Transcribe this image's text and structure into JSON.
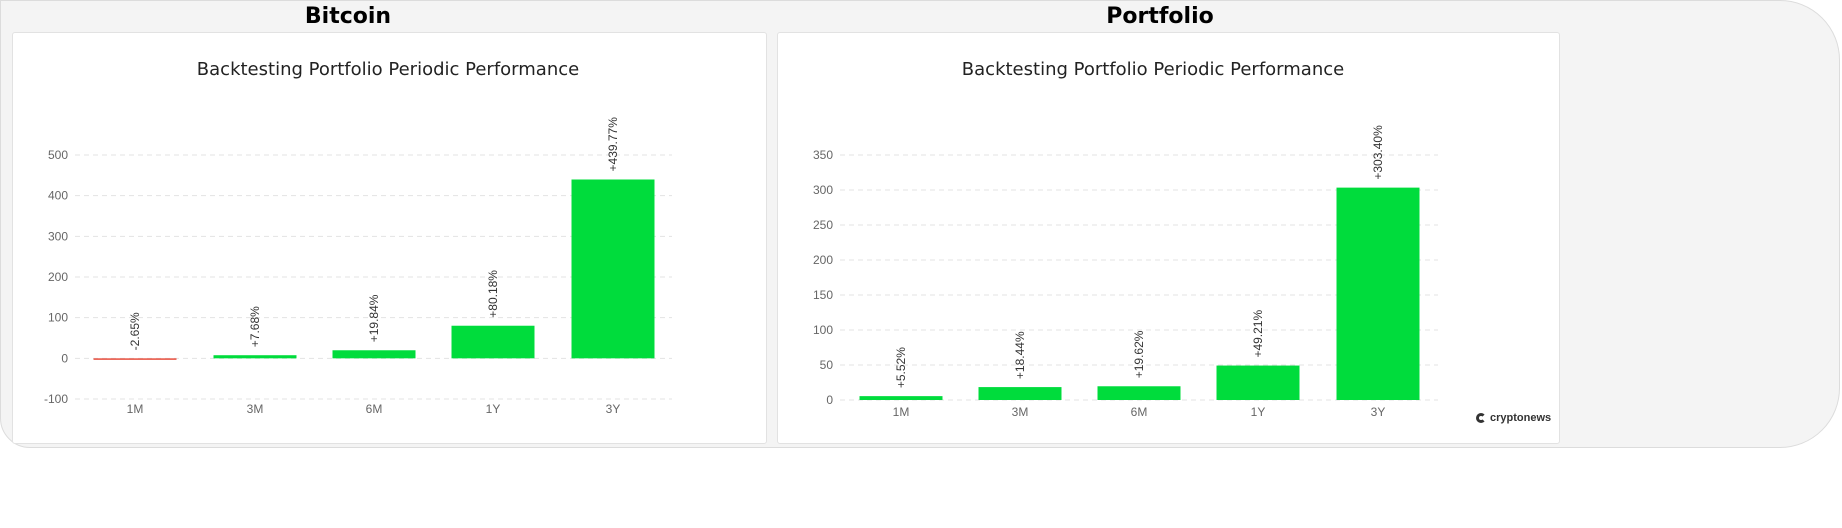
{
  "headings": [
    "Bitcoin",
    "Portfolio"
  ],
  "brand": {
    "name": "cryptonews",
    "icon": "cryptonews-logo-icon"
  },
  "colors": {
    "positive": "#00dc3c",
    "negative": "#e74c3c",
    "grid": "#e3e3e3"
  },
  "chart_data": [
    {
      "type": "bar",
      "title": "Backtesting Portfolio Periodic Performance",
      "categories": [
        "1M",
        "3M",
        "6M",
        "1Y",
        "3Y"
      ],
      "values": [
        -2.65,
        7.68,
        19.84,
        80.18,
        439.77
      ],
      "data_labels": [
        "-2.65%",
        "+7.68%",
        "+19.84%",
        "+80.18%",
        "+439.77%"
      ],
      "yticks": [
        -100,
        0,
        100,
        200,
        300,
        400,
        500
      ],
      "ylim": [
        -100,
        500
      ],
      "grid": true,
      "xlabel": "",
      "ylabel": ""
    },
    {
      "type": "bar",
      "title": "Backtesting Portfolio Periodic Performance",
      "categories": [
        "1M",
        "3M",
        "6M",
        "1Y",
        "3Y"
      ],
      "values": [
        5.52,
        18.44,
        19.62,
        49.21,
        303.4
      ],
      "data_labels": [
        "+5.52%",
        "+18.44%",
        "+19.62%",
        "+49.21%",
        "+303.40%"
      ],
      "yticks": [
        0,
        50,
        100,
        150,
        200,
        250,
        300,
        350
      ],
      "ylim": [
        0,
        350
      ],
      "grid": true,
      "xlabel": "",
      "ylabel": ""
    }
  ]
}
